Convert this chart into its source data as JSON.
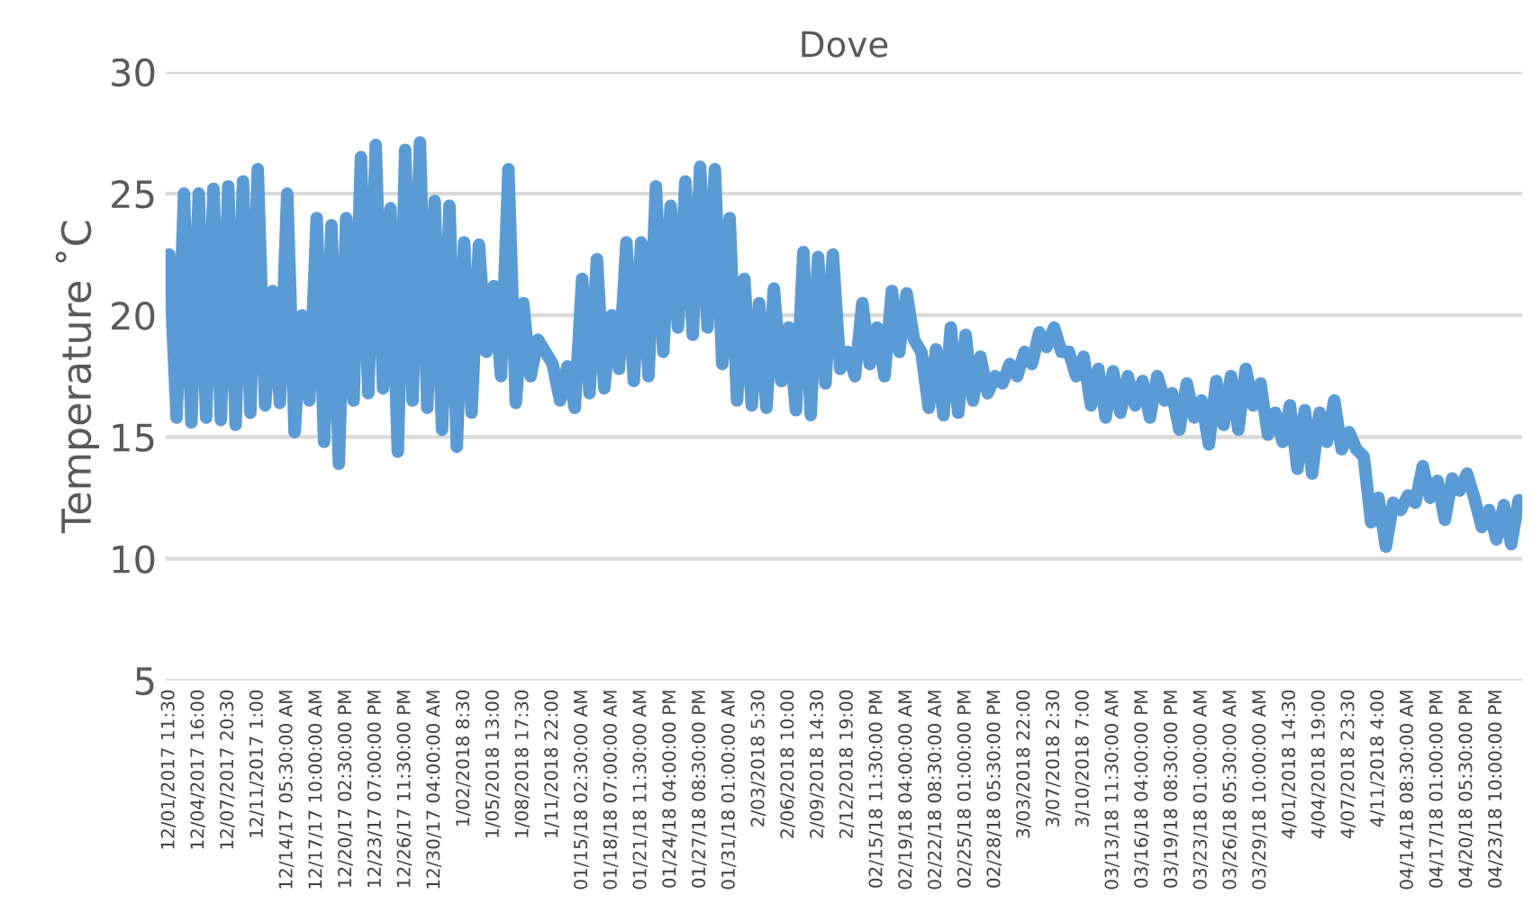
{
  "chart_data": {
    "type": "line",
    "title": "Dove",
    "ylabel": "Temperature ˚C",
    "categories": [
      "12/01/2017 11:30",
      null,
      null,
      null,
      "12/04/2017 16:00",
      null,
      null,
      null,
      "12/07/2017 20:30",
      null,
      null,
      null,
      "12/11/2017 1:00",
      null,
      null,
      null,
      "12/14/17 05:30:00 AM",
      null,
      null,
      null,
      "12/17/17 10:00:00 AM",
      null,
      null,
      null,
      "12/20/17 02:30:00 PM",
      null,
      null,
      null,
      "12/23/17 07:00:00 PM",
      null,
      null,
      null,
      "12/26/17 11:30:00 PM",
      null,
      null,
      null,
      "12/30/17 04:00:00 AM",
      null,
      null,
      null,
      "1/02/2018 8:30",
      null,
      null,
      null,
      "1/05/2018 13:00",
      null,
      null,
      null,
      "1/08/2018 17:30",
      null,
      null,
      null,
      "1/11/2018 22:00",
      null,
      null,
      null,
      "01/15/18 02:30:00 AM",
      null,
      null,
      null,
      "01/18/18 07:00:00 AM",
      null,
      null,
      null,
      "01/21/18 11:30:00 AM",
      null,
      null,
      null,
      "01/24/18 04:00:00 PM",
      null,
      null,
      null,
      "01/27/18 08:30:00 PM",
      null,
      null,
      null,
      "01/31/18 01:00:00 AM",
      null,
      null,
      null,
      "2/03/2018 5:30",
      null,
      null,
      null,
      "2/06/2018 10:00",
      null,
      null,
      null,
      "2/09/2018 14:30",
      null,
      null,
      null,
      "2/12/2018 19:00",
      null,
      null,
      null,
      "02/15/18 11:30:00 PM",
      null,
      null,
      null,
      "02/19/18 04:00:00 AM",
      null,
      null,
      null,
      "02/22/18 08:30:00 AM",
      null,
      null,
      null,
      "02/25/18 01:00:00 PM",
      null,
      null,
      null,
      "02/28/18 05:30:00 PM",
      null,
      null,
      null,
      "3/03/2018 22:00",
      null,
      null,
      null,
      "3/07/2018 2:30",
      null,
      null,
      null,
      "3/10/2018 7:00",
      null,
      null,
      null,
      "03/13/18 11:30:00 AM",
      null,
      null,
      null,
      "03/16/18 04:00:00 PM",
      null,
      null,
      null,
      "03/19/18 08:30:00 PM",
      null,
      null,
      null,
      "03/23/18 01:00:00 AM",
      null,
      null,
      null,
      "03/26/18 05:30:00 AM",
      null,
      null,
      null,
      "03/29/18 10:00:00 AM",
      null,
      null,
      null,
      "4/01/2018 14:30",
      null,
      null,
      null,
      "4/04/2018 19:00",
      null,
      null,
      null,
      "4/07/2018 23:30",
      null,
      null,
      null,
      "4/11/2018 4:00",
      null,
      null,
      null,
      "04/14/18 08:30:00 AM",
      null,
      null,
      null,
      "04/17/18 01:00:00 PM",
      null,
      null,
      null,
      "04/20/18 05:30:00 PM",
      null,
      null,
      null,
      "04/23/18 10:00:00 PM",
      null,
      null,
      null
    ],
    "series": [
      {
        "color": "#5b9bd5",
        "values": [
          22.5,
          15.8,
          25,
          15.6,
          25,
          15.8,
          25.2,
          15.7,
          25.3,
          15.5,
          25.5,
          16,
          26,
          16.3,
          21,
          16.4,
          25,
          15.2,
          20,
          16.5,
          24,
          14.8,
          23.7,
          13.9,
          24,
          16.5,
          26.5,
          16.8,
          27,
          17,
          24.4,
          14.4,
          26.8,
          16.5,
          27.1,
          16.2,
          24.7,
          15.3,
          24.5,
          14.6,
          23,
          16,
          22.9,
          18.5,
          21.2,
          17.5,
          26,
          16.4,
          20.5,
          17.5,
          19,
          18.5,
          18,
          16.5,
          17.9,
          16.2,
          21.5,
          16.8,
          22.3,
          17,
          20,
          17.8,
          23,
          17.3,
          23,
          17.5,
          25.3,
          18.5,
          24.5,
          19.5,
          25.5,
          19.2,
          26.1,
          19.5,
          26,
          18,
          24,
          16.5,
          21.5,
          16.3,
          20.5,
          16.2,
          21.1,
          17.3,
          19.5,
          16.1,
          22.6,
          15.9,
          22.4,
          17.2,
          22.5,
          17.8,
          18.5,
          17.5,
          20.5,
          18,
          19.5,
          17.5,
          21,
          18.5,
          20.9,
          19,
          18.5,
          16.2,
          18.6,
          15.9,
          19.5,
          16,
          19.2,
          16.5,
          18.3,
          16.8,
          17.5,
          17.2,
          18,
          17.5,
          18.5,
          18,
          19.3,
          18.7,
          19.5,
          18.5,
          18.5,
          17.5,
          18.3,
          16.3,
          17.8,
          15.8,
          17.7,
          16,
          17.5,
          16.3,
          17.3,
          15.8,
          17.5,
          16.5,
          16.8,
          15.3,
          17.2,
          15.8,
          16.5,
          14.7,
          17.3,
          15.5,
          17.5,
          15.3,
          17.8,
          16.3,
          17.2,
          15.1,
          16,
          14.8,
          16.3,
          13.7,
          16.1,
          13.5,
          16,
          14.8,
          16.5,
          14.5,
          15.2,
          14.5,
          14.2,
          11.5,
          12.5,
          10.5,
          12.3,
          12,
          12.6,
          12.3,
          13.8,
          12.5,
          13.2,
          11.6,
          13.3,
          12.8,
          13.5,
          12.5,
          11.3,
          12,
          10.8,
          12.2,
          10.6,
          12.4
        ]
      }
    ],
    "ylim": [
      5,
      30
    ],
    "yticks": [
      5,
      10,
      15,
      20,
      25,
      30
    ],
    "grid": "y",
    "legend": false
  }
}
